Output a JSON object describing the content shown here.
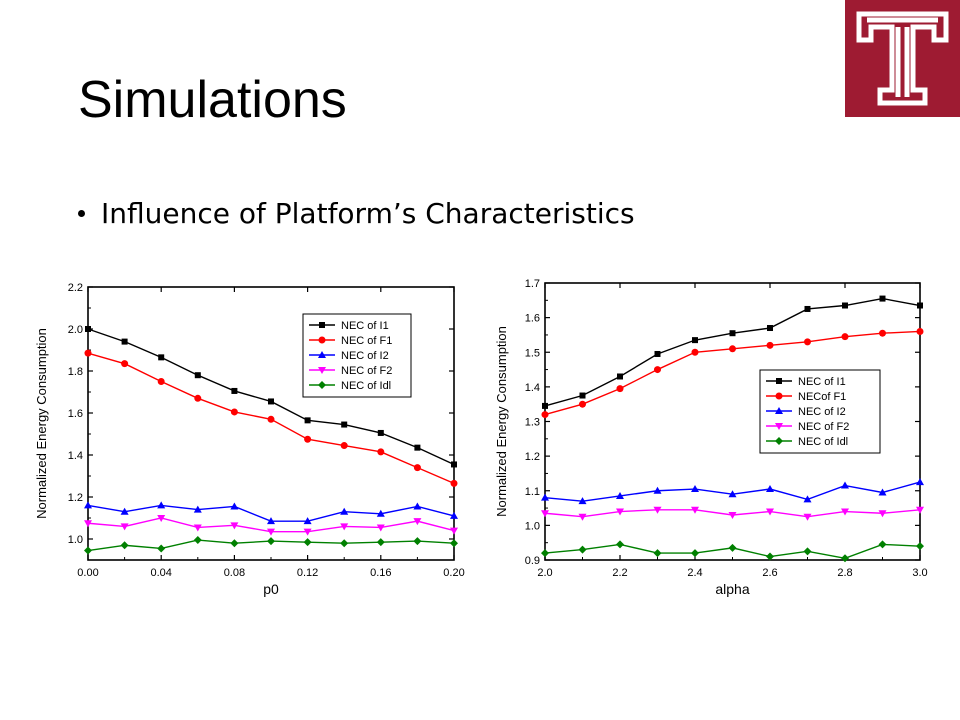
{
  "slide": {
    "title": "Simulations",
    "bullet": "Influence of Platform’s Characteristics"
  },
  "colors": {
    "logo_bg": "#9e1b32",
    "logo_fg": "#ffffff"
  },
  "chart_data": [
    {
      "type": "line",
      "xlabel": "p0",
      "ylabel": "Normalized Energy Consumption",
      "xlim": [
        0.0,
        0.2
      ],
      "ylim": [
        0.9,
        2.2
      ],
      "xticks": [
        "0.00",
        "0.04",
        "0.08",
        "0.12",
        "0.16",
        "0.20"
      ],
      "yticks": [
        "1.0",
        "1.2",
        "1.4",
        "1.6",
        "1.8",
        "2.0",
        "2.2"
      ],
      "legend_position": "top-right",
      "x": [
        0.0,
        0.02,
        0.04,
        0.06,
        0.08,
        0.1,
        0.12,
        0.14,
        0.16,
        0.18,
        0.2
      ],
      "series": [
        {
          "name": "NEC of I1",
          "color": "#000000",
          "marker": "square",
          "values": [
            2.0,
            1.94,
            1.865,
            1.78,
            1.705,
            1.655,
            1.565,
            1.545,
            1.505,
            1.435,
            1.355
          ]
        },
        {
          "name": "NEC of F1",
          "color": "#ff0000",
          "marker": "circle",
          "values": [
            1.885,
            1.835,
            1.75,
            1.67,
            1.605,
            1.57,
            1.475,
            1.445,
            1.415,
            1.34,
            1.265
          ]
        },
        {
          "name": "NEC of I2",
          "color": "#0000ff",
          "marker": "triangle-up",
          "values": [
            1.16,
            1.13,
            1.16,
            1.14,
            1.155,
            1.085,
            1.085,
            1.13,
            1.12,
            1.155,
            1.11
          ]
        },
        {
          "name": "NEC of F2",
          "color": "#ff00ff",
          "marker": "triangle-down",
          "values": [
            1.075,
            1.06,
            1.1,
            1.055,
            1.065,
            1.035,
            1.035,
            1.06,
            1.055,
            1.085,
            1.04
          ]
        },
        {
          "name": "NEC of Idl",
          "color": "#008000",
          "marker": "diamond",
          "values": [
            0.945,
            0.97,
            0.955,
            0.995,
            0.98,
            0.99,
            0.985,
            0.98,
            0.985,
            0.99,
            0.98
          ]
        }
      ]
    },
    {
      "type": "line",
      "xlabel": "alpha",
      "ylabel": "Normalized Energy Consumption",
      "xlim": [
        2.0,
        3.0
      ],
      "ylim": [
        0.9,
        1.7
      ],
      "xticks": [
        "2.0",
        "2.2",
        "2.4",
        "2.6",
        "2.8",
        "3.0"
      ],
      "yticks": [
        "0.9",
        "1.0",
        "1.1",
        "1.2",
        "1.3",
        "1.4",
        "1.5",
        "1.6",
        "1.7"
      ],
      "legend_position": "center-right",
      "x": [
        2.0,
        2.1,
        2.2,
        2.3,
        2.4,
        2.5,
        2.6,
        2.7,
        2.8,
        2.9,
        3.0
      ],
      "series": [
        {
          "name": "NEC of I1",
          "color": "#000000",
          "marker": "square",
          "values": [
            1.345,
            1.375,
            1.43,
            1.495,
            1.535,
            1.555,
            1.57,
            1.625,
            1.635,
            1.655,
            1.635
          ]
        },
        {
          "name": "NECof F1",
          "color": "#ff0000",
          "marker": "circle",
          "values": [
            1.32,
            1.35,
            1.395,
            1.45,
            1.5,
            1.51,
            1.52,
            1.53,
            1.545,
            1.555,
            1.56
          ]
        },
        {
          "name": "NEC of I2",
          "color": "#0000ff",
          "marker": "triangle-up",
          "values": [
            1.08,
            1.07,
            1.085,
            1.1,
            1.105,
            1.09,
            1.105,
            1.075,
            1.115,
            1.095,
            1.125
          ]
        },
        {
          "name": "NEC of F2",
          "color": "#ff00ff",
          "marker": "triangle-down",
          "values": [
            1.035,
            1.025,
            1.04,
            1.045,
            1.045,
            1.03,
            1.04,
            1.025,
            1.04,
            1.035,
            1.045
          ]
        },
        {
          "name": "NEC of Idl",
          "color": "#008000",
          "marker": "diamond",
          "values": [
            0.92,
            0.93,
            0.945,
            0.92,
            0.92,
            0.935,
            0.91,
            0.925,
            0.905,
            0.945,
            0.94
          ]
        }
      ]
    }
  ]
}
